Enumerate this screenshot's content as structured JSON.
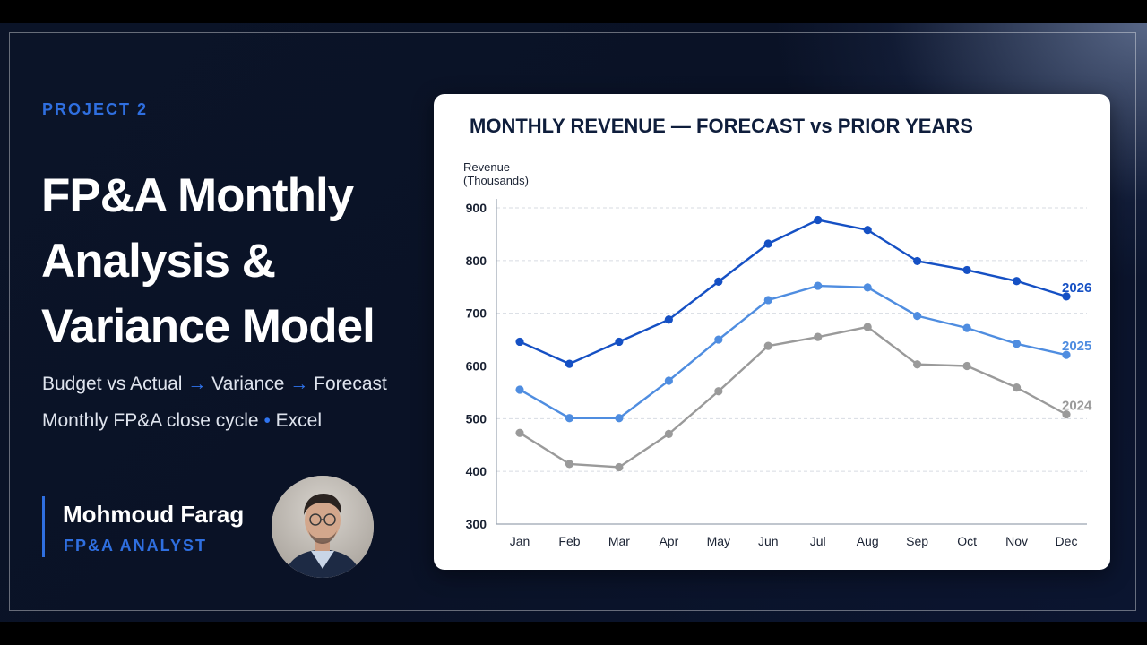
{
  "slide": {
    "kicker": "PROJECT 2",
    "title_lines": [
      "FP&A Monthly",
      "Analysis &",
      "Variance Model"
    ],
    "subtitle_1": {
      "parts": [
        "Budget vs Actual",
        "→",
        "Variance",
        "→",
        "Forecast"
      ]
    },
    "subtitle_2": {
      "parts": [
        "Monthly FP&A close cycle",
        "•",
        "Excel"
      ]
    },
    "author": {
      "name": "Mohmoud Farag",
      "role": "FP&A ANALYST"
    },
    "colors": {
      "accent": "#2f6fe0",
      "background": "#0b1428",
      "text": "#ffffff"
    }
  },
  "chart_data": {
    "type": "line",
    "title": "MONTHLY REVENUE — FORECAST vs PRIOR YEARS",
    "xlabel": "",
    "ylabel": "Revenue (Thousands)",
    "ylabel_lines": [
      "Revenue",
      "(Thousands)"
    ],
    "ylim": [
      300,
      900
    ],
    "yticks": [
      300,
      400,
      500,
      600,
      700,
      800,
      900
    ],
    "grid": true,
    "legend": "end-of-line labels",
    "categories": [
      "Jan",
      "Feb",
      "Mar",
      "Apr",
      "May",
      "Jun",
      "Jul",
      "Aug",
      "Sep",
      "Oct",
      "Nov",
      "Dec"
    ],
    "series": [
      {
        "name": "2026",
        "color": "#1550c4",
        "values": [
          646,
          604,
          646,
          688,
          760,
          832,
          877,
          858,
          799,
          782,
          761,
          732
        ]
      },
      {
        "name": "2025",
        "color": "#4f8de0",
        "values": [
          555,
          501,
          501,
          572,
          650,
          725,
          752,
          749,
          695,
          672,
          642,
          621
        ]
      },
      {
        "name": "2024",
        "color": "#9a9a9a",
        "values": [
          473,
          414,
          408,
          471,
          552,
          638,
          655,
          674,
          603,
          600,
          559,
          508
        ]
      }
    ]
  }
}
